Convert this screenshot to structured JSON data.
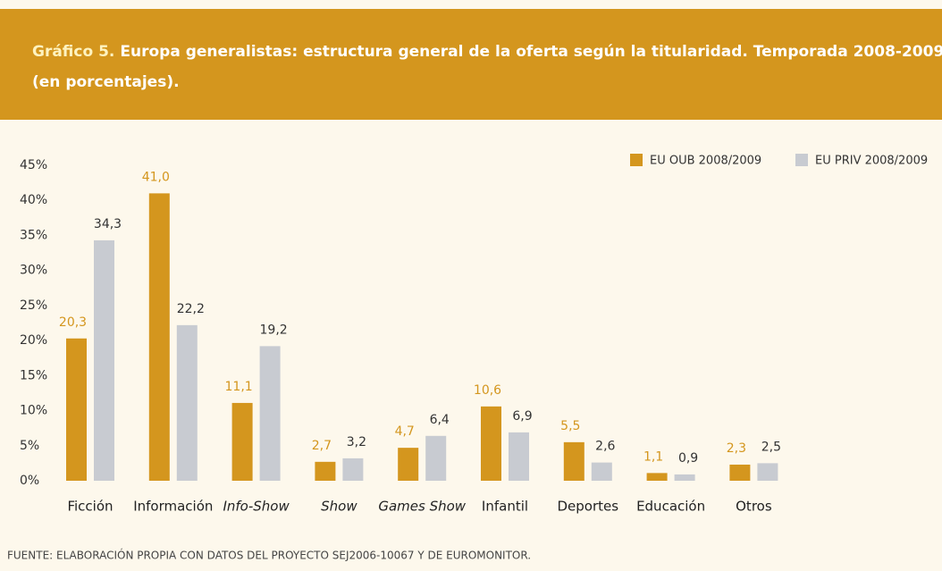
{
  "chart_data": {
    "type": "bar",
    "title_prefix": "Gráfico 5.",
    "title": "Europa generalistas: estructura general de la oferta según la titularidad. Temporada 2008-2009",
    "subtitle": "(en porcentajes).",
    "source": "FUENTE: ELABORACIÓN PROPIA CON DATOS DEL PROYECTO SEJ2006-10067 Y DE EUROMONITOR.",
    "categories": [
      "Ficción",
      "Información",
      "Info-Show",
      "Show",
      "Games Show",
      "Infantil",
      "Deportes",
      "Educación",
      "Otros"
    ],
    "italic_categories": [
      false,
      false,
      true,
      true,
      true,
      false,
      false,
      false,
      false
    ],
    "series": [
      {
        "name": "EU OUB 2008/2009",
        "color": "#d4961e",
        "label_color": "#d4961e",
        "values": [
          20.3,
          41.0,
          11.1,
          2.7,
          4.7,
          10.6,
          5.5,
          1.1,
          2.3
        ],
        "value_labels": [
          "20,3",
          "41,0",
          "11,1",
          "2,7",
          "4,7",
          "10,6",
          "5,5",
          "1,1",
          "2,3"
        ]
      },
      {
        "name": "EU PRIV 2008/2009",
        "color": "#c8cbd1",
        "label_color": "#333333",
        "values": [
          34.3,
          22.2,
          19.2,
          3.2,
          6.4,
          6.9,
          2.6,
          0.9,
          2.5
        ],
        "value_labels": [
          "34,3",
          "22,2",
          "19,2",
          "3,2",
          "6,4",
          "6,9",
          "2,6",
          "0,9",
          "2,5"
        ]
      }
    ],
    "ylim": [
      0,
      45
    ],
    "yticks": [
      {
        "value": 0,
        "label": "0%"
      },
      {
        "value": 5,
        "label": "5%"
      },
      {
        "value": 10,
        "label": "10%"
      },
      {
        "value": 15,
        "label": "15%"
      },
      {
        "value": 20,
        "label": "20%"
      },
      {
        "value": 25,
        "label": "25%"
      },
      {
        "value": 30,
        "label": "30%"
      },
      {
        "value": 35,
        "label": "35%"
      },
      {
        "value": 40,
        "label": "40%"
      },
      {
        "value": 45,
        "label": "45%"
      }
    ],
    "grid": false,
    "legend": "top-right"
  }
}
